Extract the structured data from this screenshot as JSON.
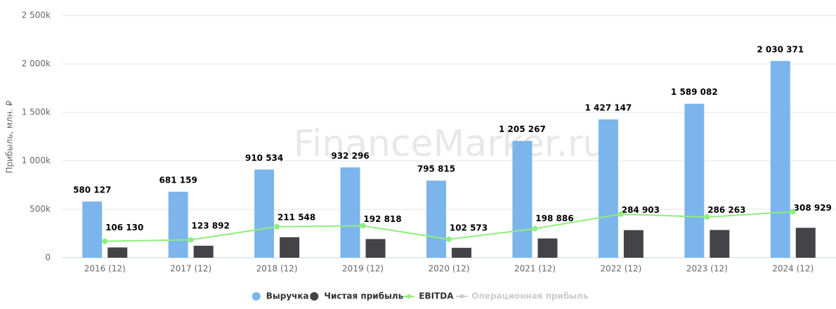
{
  "chart_data": {
    "type": "bar",
    "watermark": "FinanceMarker.ru",
    "y_label": "Прибыль, млн. ₽",
    "categories": [
      "2016 (12)",
      "2017 (12)",
      "2018 (12)",
      "2019 (12)",
      "2020 (12)",
      "2021 (12)",
      "2022 (12)",
      "2023 (12)",
      "2024 (12)"
    ],
    "series": [
      {
        "name": "Выручка",
        "type": "bar",
        "color": "#7cb5ec",
        "values": [
          580127,
          681159,
          910534,
          932296,
          795815,
          1205267,
          1427147,
          1589082,
          2030371
        ],
        "value_labels": [
          "580 127",
          "681 159",
          "910 534",
          "932 296",
          "795 815",
          "1 205 267",
          "1 427 147",
          "1 589 082",
          "2 030 371"
        ]
      },
      {
        "name": "Чистая прибыль",
        "type": "bar",
        "color": "#434348",
        "values": [
          106130,
          123892,
          211548,
          192818,
          102573,
          198886,
          284903,
          286263,
          308929
        ],
        "value_labels": [
          "106 130",
          "123 892",
          "211 548",
          "192 818",
          "102 573",
          "198 886",
          "284 903",
          "286 263",
          "308 929"
        ]
      },
      {
        "name": "EBITDA",
        "type": "line",
        "color": "#90ed7d",
        "values": [
          170000,
          185000,
          320000,
          330000,
          190000,
          300000,
          450000,
          420000,
          475000
        ]
      },
      {
        "name": "Операционная прибыль",
        "type": "line",
        "color": "#cccccc",
        "visible": false,
        "values": [
          null,
          null,
          null,
          null,
          null,
          null,
          null,
          null,
          null
        ]
      }
    ],
    "ylim": [
      0,
      2500000
    ],
    "yticks": [
      0,
      {
        "value": 500000,
        "label": "500k"
      },
      {
        "value": 1000000,
        "label": "1 000k"
      },
      {
        "value": 1500000,
        "label": "1 500k"
      },
      {
        "value": 2000000,
        "label": "2 000k"
      },
      {
        "value": 2500000,
        "label": "2 500k"
      }
    ],
    "grid": true
  }
}
